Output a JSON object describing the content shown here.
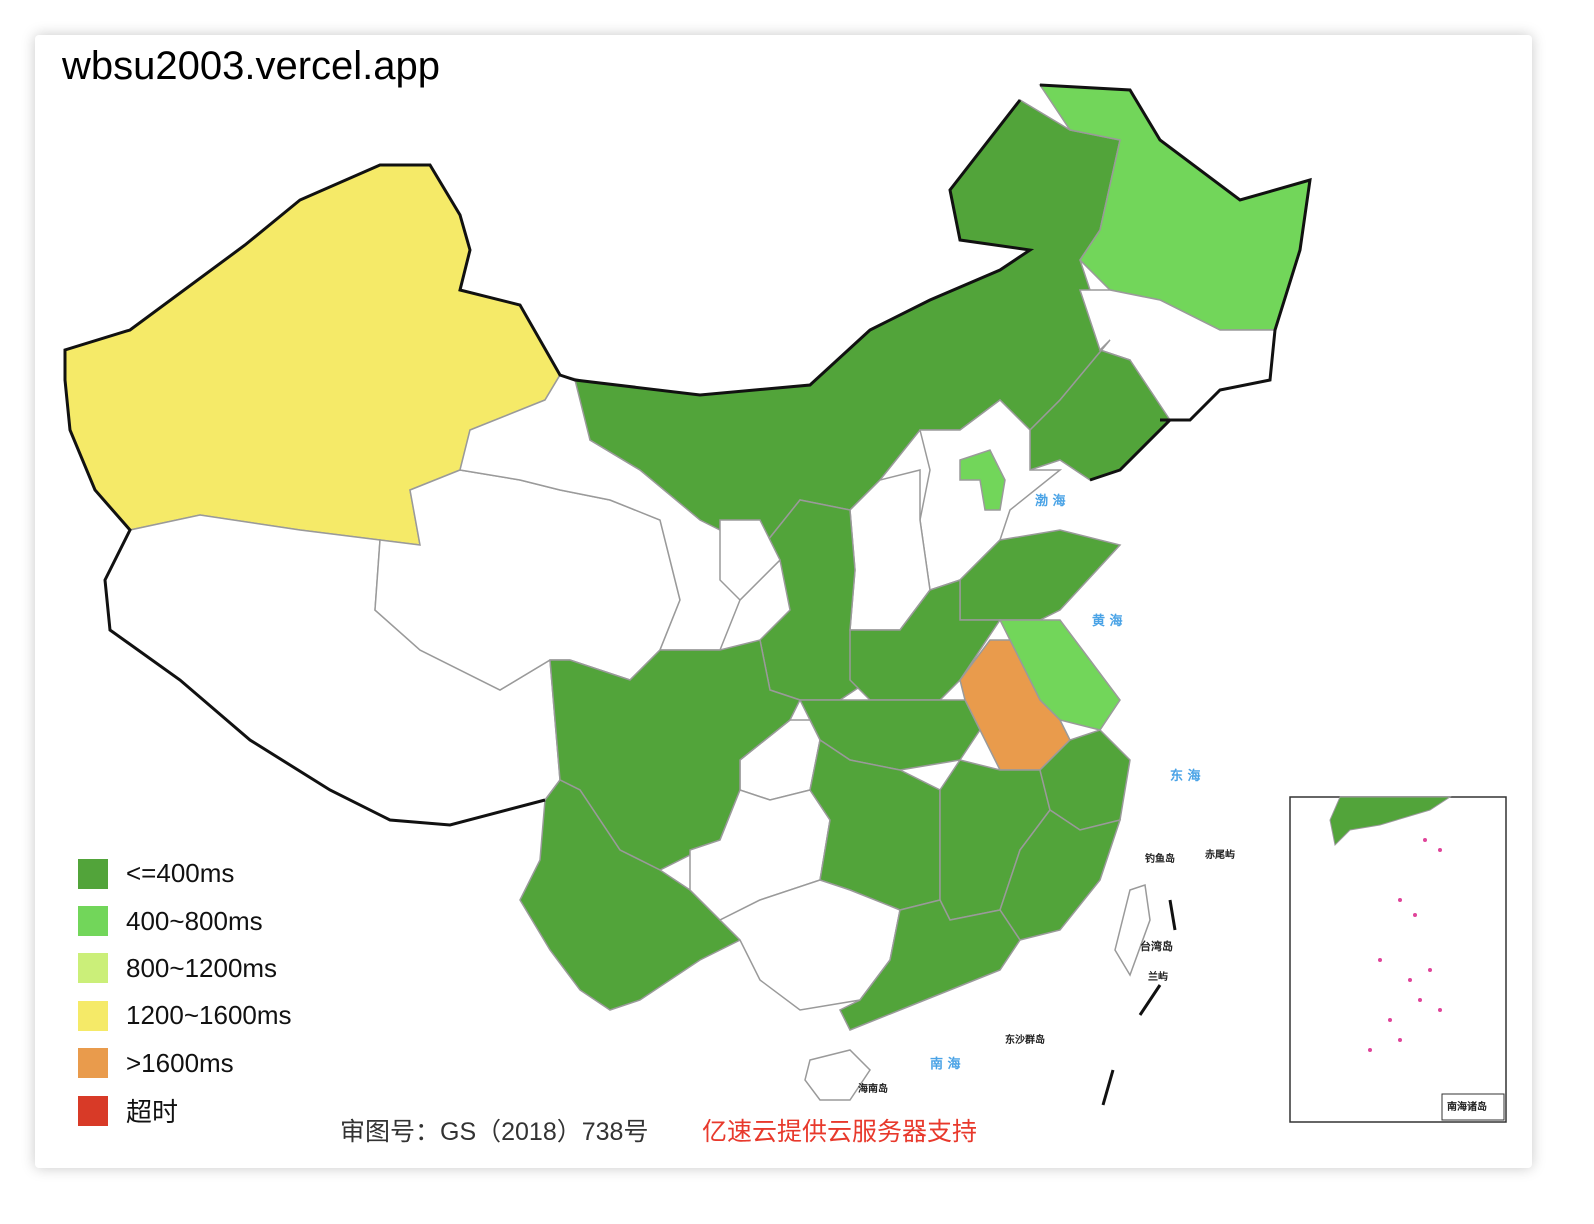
{
  "title": "wbsu2003.vercel.app",
  "legend": [
    {
      "label": "<=400ms",
      "color": "#52a43a"
    },
    {
      "label": "400~800ms",
      "color": "#72d65a"
    },
    {
      "label": "800~1200ms",
      "color": "#cbef79"
    },
    {
      "label": "1200~1600ms",
      "color": "#f5ea68"
    },
    {
      "label": ">1600ms",
      "color": "#e99b4c"
    },
    {
      "label": "超时",
      "color": "#d83a27"
    }
  ],
  "no_data_color": "#ffffff",
  "regions": {
    "xinjiang": "1200~1600ms",
    "tibet": null,
    "qinghai": null,
    "gansu": null,
    "inner_mongolia": "<=400ms",
    "heilongjiang": "400~800ms",
    "jilin": null,
    "liaoning": "<=400ms",
    "hebei": null,
    "beijing": "400~800ms",
    "shanxi": null,
    "shaanxi": "<=400ms",
    "ningxia": null,
    "shandong": "<=400ms",
    "henan": "<=400ms",
    "jiangsu": "400~800ms",
    "anhui": ">1600ms",
    "hubei": "<=400ms",
    "chongqing": null,
    "sichuan": "<=400ms",
    "yunnan": "<=400ms",
    "guizhou": null,
    "hunan": "<=400ms",
    "jiangxi": "<=400ms",
    "zhejiang": "<=400ms",
    "fujian": "<=400ms",
    "guangxi": null,
    "guangdong": "<=400ms",
    "hainan": null,
    "taiwan": null
  },
  "map_labels": {
    "bohai": "渤 海",
    "huanghai": "黄 海",
    "donghai": "东 海",
    "nanhai": "南 海",
    "diaoyu": "钓鱼岛",
    "chiwei": "赤尾屿",
    "taiwan": "台湾岛",
    "lanyu": "兰屿",
    "dongsha": "东沙群岛",
    "hainan": "海南岛",
    "inset_title": "南海诸岛"
  },
  "footer": {
    "approval": "审图号：GS（2018）738号",
    "sponsor": "亿速云提供云服务器支持"
  }
}
